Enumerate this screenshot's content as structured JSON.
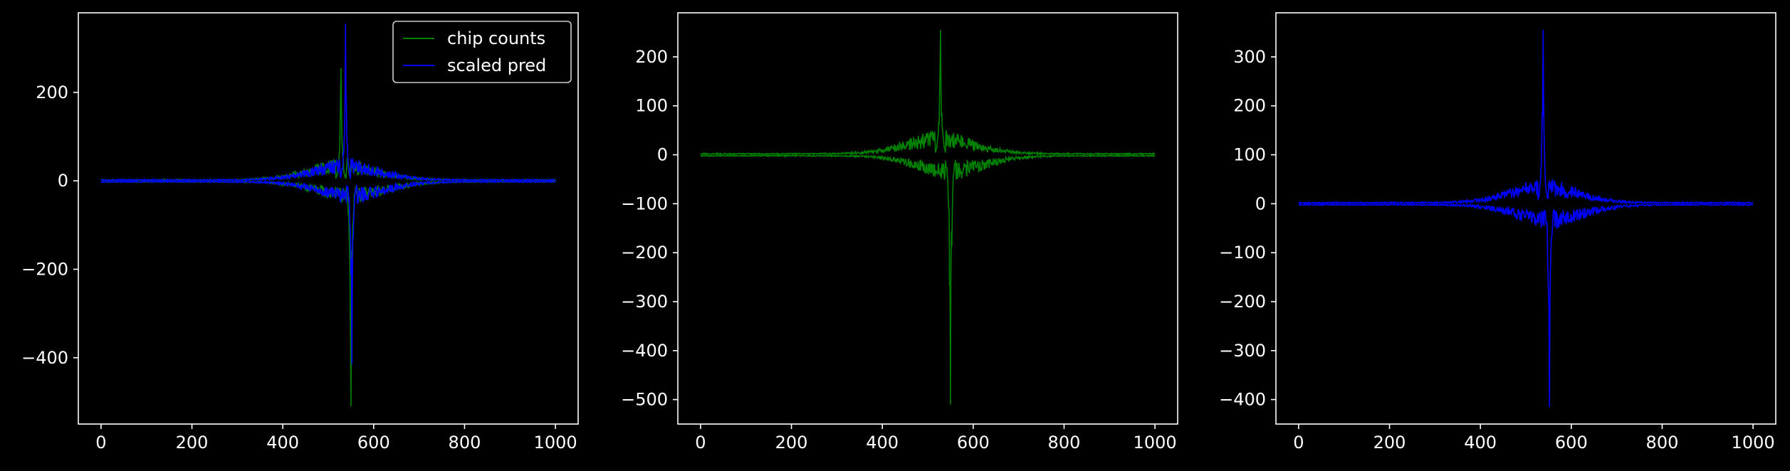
{
  "colors": {
    "background": "#000000",
    "axes": "#ffffff",
    "chip": "#008000",
    "pred": "#0000ff"
  },
  "chart_data": [
    {
      "type": "line",
      "xlim": [
        -50,
        1050
      ],
      "ylim": [
        -550,
        380
      ],
      "xticks": [
        0,
        200,
        400,
        600,
        800,
        1000
      ],
      "yticks": [
        -400,
        -200,
        0,
        200
      ],
      "xtick_labels": [
        "0",
        "200",
        "400",
        "600",
        "800",
        "1000"
      ],
      "ytick_labels": [
        "−400",
        "−200",
        "0",
        "200"
      ],
      "grid": false,
      "legend": "top-right",
      "series": [
        {
          "name": "chip counts",
          "color": "#008000",
          "n": 1000,
          "env_pos": 255,
          "env_neg": -510,
          "peak_pos_x": 528,
          "peak_neg_x": 550
        },
        {
          "name": "scaled pred",
          "color": "#0000ff",
          "n": 1000,
          "env_pos": 355,
          "env_neg": -415,
          "peak_pos_x": 538,
          "peak_neg_x": 552
        }
      ]
    },
    {
      "type": "line",
      "xlim": [
        -50,
        1050
      ],
      "ylim": [
        -550,
        290
      ],
      "xticks": [
        0,
        200,
        400,
        600,
        800,
        1000
      ],
      "yticks": [
        -500,
        -400,
        -300,
        -200,
        -100,
        0,
        100,
        200
      ],
      "xtick_labels": [
        "0",
        "200",
        "400",
        "600",
        "800",
        "1000"
      ],
      "ytick_labels": [
        "−500",
        "−400",
        "−300",
        "−200",
        "−100",
        "0",
        "100",
        "200"
      ],
      "grid": false,
      "series": [
        {
          "color": "#008000",
          "n": 1000,
          "env_pos": 255,
          "env_neg": -510,
          "peak_pos_x": 528,
          "peak_neg_x": 550
        }
      ]
    },
    {
      "type": "line",
      "xlim": [
        -50,
        1050
      ],
      "ylim": [
        -450,
        390
      ],
      "xticks": [
        0,
        200,
        400,
        600,
        800,
        1000
      ],
      "yticks": [
        -400,
        -300,
        -200,
        -100,
        0,
        100,
        200,
        300
      ],
      "xtick_labels": [
        "0",
        "200",
        "400",
        "600",
        "800",
        "1000"
      ],
      "ytick_labels": [
        "−400",
        "−300",
        "−200",
        "−100",
        "0",
        "100",
        "200",
        "300"
      ],
      "grid": false,
      "series": [
        {
          "color": "#0000ff",
          "n": 1000,
          "env_pos": 355,
          "env_neg": -415,
          "peak_pos_x": 538,
          "peak_neg_x": 552
        }
      ]
    }
  ]
}
